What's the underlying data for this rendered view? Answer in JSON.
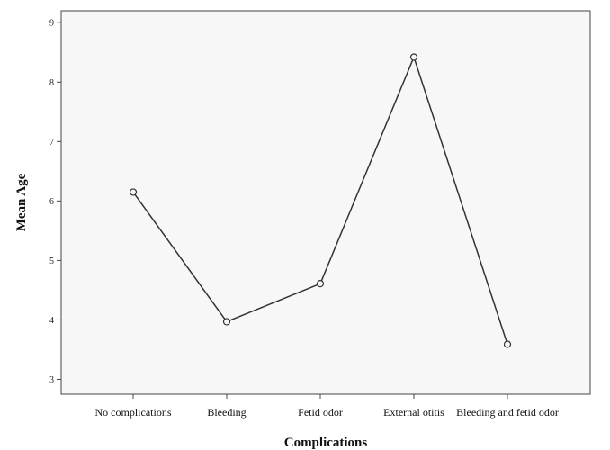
{
  "chart_data": {
    "type": "line",
    "title": "",
    "xlabel": "Complications",
    "ylabel": "Mean Age",
    "categories": [
      "No complications",
      "Bleeding",
      "Fetid odor",
      "External otitis",
      "Bleeding and fetid odor"
    ],
    "series": [
      {
        "values": [
          6.15,
          3.97,
          4.61,
          8.42,
          3.59
        ]
      }
    ],
    "yticks": [
      "3",
      "4",
      "5",
      "6",
      "7",
      "8",
      "9"
    ],
    "ylim": [
      2.75,
      9.2
    ],
    "grid": false,
    "legend": "none",
    "colors": {
      "plot_background": "#f7f7f7",
      "line": "#333333",
      "axis": "#444444"
    }
  }
}
